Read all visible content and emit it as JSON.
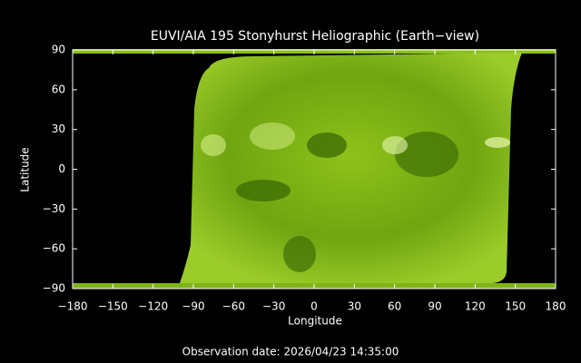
{
  "chart_data": {
    "type": "image",
    "title": "EUVI/AIA 195 Stonyhurst Heliographic (Earth−view)",
    "x_label": "Longitude",
    "y_label": "Latitude",
    "footer": "Observation date: 2026/04/23 14:35:00",
    "xlim": [
      -180,
      180
    ],
    "ylim": [
      -90,
      90
    ],
    "xticks": [
      {
        "value": -180,
        "label": "−180"
      },
      {
        "value": -150,
        "label": "−150"
      },
      {
        "value": -120,
        "label": "−120"
      },
      {
        "value": -90,
        "label": "−90"
      },
      {
        "value": -60,
        "label": "−60"
      },
      {
        "value": -30,
        "label": "−30"
      },
      0,
      30,
      60,
      90,
      120,
      150,
      180
    ],
    "yticks": [
      {
        "value": -90,
        "label": "−90"
      },
      {
        "value": -60,
        "label": "−60"
      },
      {
        "value": -30,
        "label": "−30"
      },
      0,
      30,
      60,
      90
    ]
  }
}
